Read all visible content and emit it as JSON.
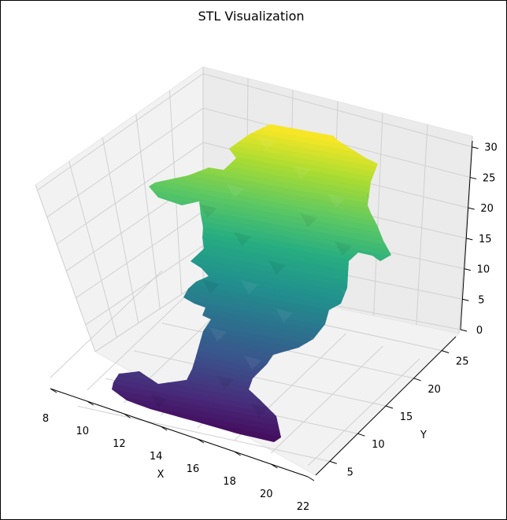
{
  "chart_data": {
    "type": "surface3d",
    "title": "STL Visualization",
    "xlabel": "X",
    "ylabel": "Y",
    "zlabel": "",
    "xlim": [
      8,
      22
    ],
    "ylim": [
      2.5,
      27.5
    ],
    "zlim": [
      0,
      31
    ],
    "x_ticks": [
      "8",
      "10",
      "12",
      "14",
      "16",
      "18",
      "20",
      "22"
    ],
    "y_ticks": [
      "5",
      "10",
      "15",
      "20",
      "25"
    ],
    "z_ticks": [
      "0",
      "5",
      "10",
      "15",
      "20",
      "25",
      "30"
    ],
    "colormap": "viridis",
    "colors": {
      "z_low": "#440154",
      "z_mid": "#21918c",
      "z_high": "#fde725"
    },
    "grid": true,
    "mesh_profile": [
      {
        "z": 0.0,
        "x_min": 10.0,
        "x_max": 20.5,
        "y_min": 4.5,
        "y_max": 6.0
      },
      {
        "z": 2.0,
        "x_min": 13.0,
        "x_max": 18.5,
        "y_min": 5.5,
        "y_max": 9.0
      },
      {
        "z": 4.0,
        "x_min": 14.0,
        "x_max": 17.0,
        "y_min": 7.0,
        "y_max": 11.5
      },
      {
        "z": 7.0,
        "x_min": 13.5,
        "x_max": 17.5,
        "y_min": 7.5,
        "y_max": 13.0
      },
      {
        "z": 10.0,
        "x_min": 13.0,
        "x_max": 18.0,
        "y_min": 8.0,
        "y_max": 14.5
      },
      {
        "z": 14.0,
        "x_min": 13.0,
        "x_max": 18.5,
        "y_min": 8.0,
        "y_max": 15.5
      },
      {
        "z": 17.0,
        "x_min": 13.5,
        "x_max": 18.5,
        "y_min": 8.5,
        "y_max": 16.0
      },
      {
        "z": 19.0,
        "x_min": 9.0,
        "x_max": 21.5,
        "y_min": 6.0,
        "y_max": 19.5
      },
      {
        "z": 22.0,
        "x_min": 10.0,
        "x_max": 20.5,
        "y_min": 7.0,
        "y_max": 18.5
      },
      {
        "z": 25.0,
        "x_min": 13.5,
        "x_max": 18.5,
        "y_min": 9.0,
        "y_max": 16.5
      },
      {
        "z": 28.0,
        "x_min": 14.5,
        "x_max": 17.5,
        "y_min": 10.5,
        "y_max": 15.0
      },
      {
        "z": 31.0,
        "x_min": 15.0,
        "x_max": 17.0,
        "y_min": 11.5,
        "y_max": 14.0
      }
    ]
  }
}
